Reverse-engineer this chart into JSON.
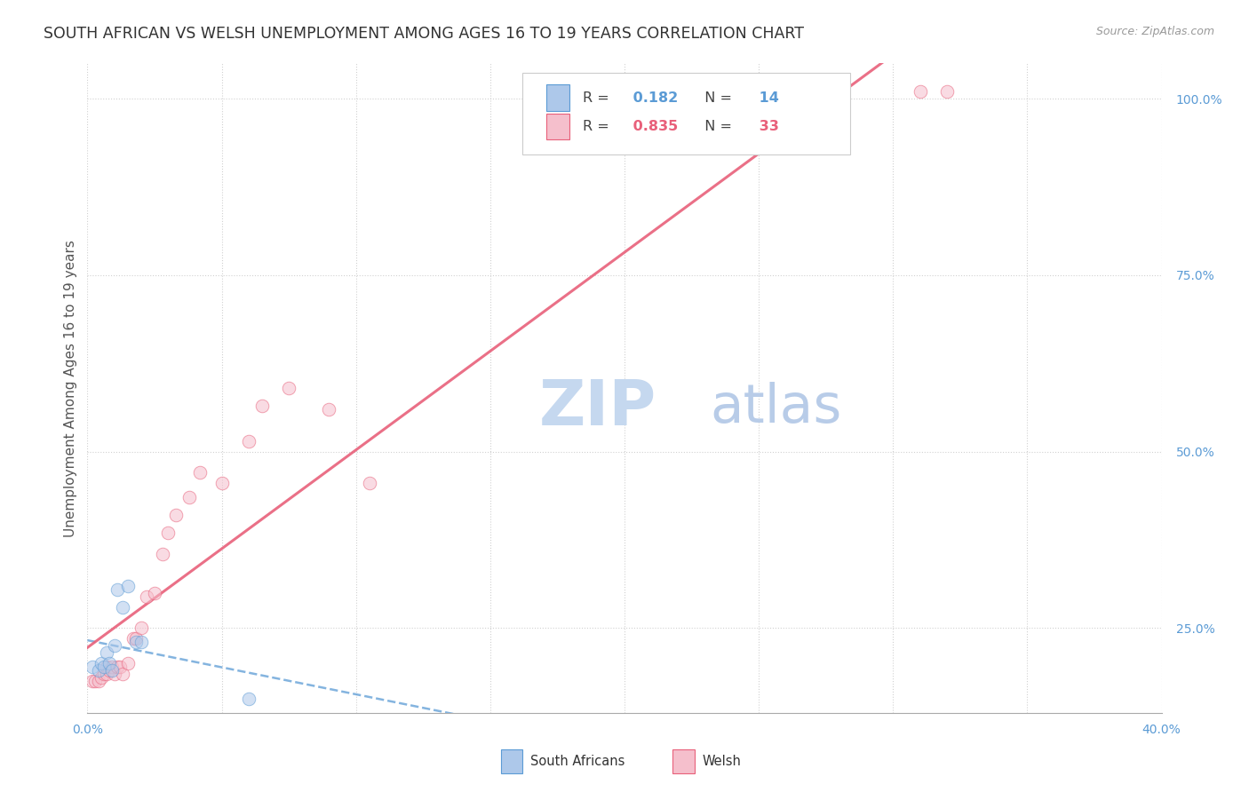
{
  "title": "SOUTH AFRICAN VS WELSH UNEMPLOYMENT AMONG AGES 16 TO 19 YEARS CORRELATION CHART",
  "source": "Source: ZipAtlas.com",
  "ylabel": "Unemployment Among Ages 16 to 19 years",
  "xlim": [
    0.0,
    0.4
  ],
  "ylim": [
    0.13,
    1.05
  ],
  "xticks": [
    0.0,
    0.05,
    0.1,
    0.15,
    0.2,
    0.25,
    0.3,
    0.35,
    0.4
  ],
  "yticks": [
    0.25,
    0.5,
    0.75,
    1.0
  ],
  "grid_color": "#cccccc",
  "background_color": "#ffffff",
  "south_african_x": [
    0.002,
    0.004,
    0.005,
    0.006,
    0.007,
    0.008,
    0.009,
    0.01,
    0.011,
    0.013,
    0.015,
    0.018,
    0.02,
    0.06
  ],
  "south_african_y": [
    0.195,
    0.19,
    0.2,
    0.195,
    0.215,
    0.2,
    0.19,
    0.225,
    0.305,
    0.28,
    0.31,
    0.23,
    0.23,
    0.15
  ],
  "welsh_x": [
    0.002,
    0.003,
    0.004,
    0.005,
    0.006,
    0.007,
    0.007,
    0.008,
    0.009,
    0.01,
    0.011,
    0.012,
    0.013,
    0.015,
    0.017,
    0.018,
    0.02,
    0.022,
    0.025,
    0.028,
    0.03,
    0.033,
    0.038,
    0.042,
    0.05,
    0.06,
    0.065,
    0.075,
    0.09,
    0.105,
    0.26,
    0.31,
    0.32
  ],
  "welsh_y": [
    0.175,
    0.175,
    0.175,
    0.18,
    0.185,
    0.185,
    0.195,
    0.19,
    0.195,
    0.185,
    0.195,
    0.195,
    0.185,
    0.2,
    0.235,
    0.235,
    0.25,
    0.295,
    0.3,
    0.355,
    0.385,
    0.41,
    0.435,
    0.47,
    0.455,
    0.515,
    0.565,
    0.59,
    0.56,
    0.455,
    1.01,
    1.01,
    1.01
  ],
  "sa_R": 0.182,
  "sa_N": 14,
  "welsh_R": 0.835,
  "welsh_N": 33,
  "sa_color": "#adc8ea",
  "sa_color_solid": "#5b9bd5",
  "welsh_color": "#f5bfcc",
  "welsh_color_solid": "#e8607a",
  "marker_size": 110,
  "marker_alpha": 0.55,
  "title_fontsize": 12.5,
  "label_fontsize": 11,
  "tick_fontsize": 10,
  "watermark_zip_color": "#c5d8ef",
  "watermark_atlas_color": "#b8cce8",
  "watermark_fontsize": 52
}
